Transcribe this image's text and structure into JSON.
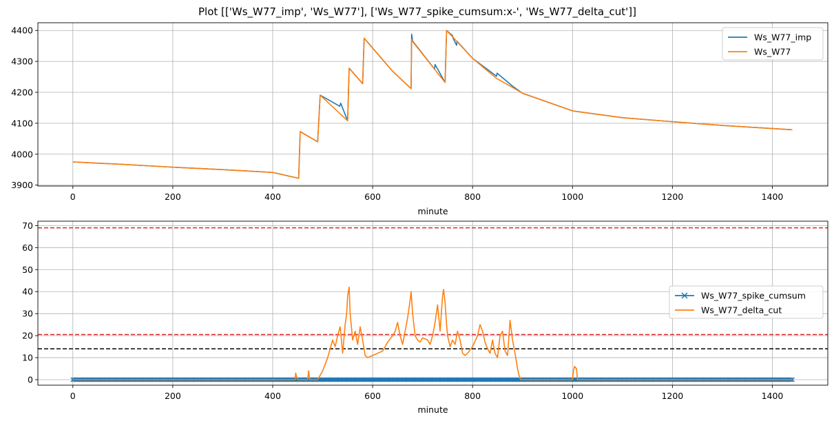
{
  "figure": {
    "title": "Plot [['Ws_W77_imp', 'Ws_W77'], ['Ws_W77_spike_cumsum:x-', 'Ws_W77_delta_cut']]"
  },
  "chart_data": [
    {
      "type": "line",
      "xlabel": "minute",
      "ylabel": "",
      "xlim": [
        -70,
        1511
      ],
      "ylim": [
        3897,
        4425
      ],
      "xticks": [
        0,
        200,
        400,
        600,
        800,
        1000,
        1200,
        1400
      ],
      "yticks": [
        3900,
        4000,
        4100,
        4200,
        4300,
        4400
      ],
      "grid": true,
      "legend": "upper right",
      "series": [
        {
          "name": "Ws_W77_imp",
          "color": "#1f77b4",
          "x": [
            0,
            100,
            200,
            300,
            400,
            452,
            455,
            490,
            495,
            534,
            536,
            550,
            553,
            580,
            583,
            640,
            677,
            678,
            680,
            724,
            725,
            745,
            748,
            760,
            761,
            768,
            769,
            800,
            848,
            849,
            880,
            900,
            1000,
            1100,
            1200,
            1300,
            1440
          ],
          "y": [
            3975,
            3967,
            3958,
            3950,
            3941,
            3922,
            4073,
            4040,
            4191,
            4155,
            4165,
            4108,
            4278,
            4228,
            4375,
            4268,
            4212,
            4388,
            4366,
            4275,
            4290,
            4232,
            4400,
            4383,
            4375,
            4352,
            4365,
            4310,
            4252,
            4262,
            4220,
            4197,
            4140,
            4118,
            4105,
            4093,
            4079
          ]
        },
        {
          "name": "Ws_W77",
          "color": "#ff7f0e",
          "x": [
            0,
            100,
            200,
            300,
            400,
            452,
            455,
            490,
            495,
            550,
            553,
            580,
            583,
            640,
            677,
            678,
            680,
            745,
            748,
            800,
            848,
            880,
            900,
            1000,
            1100,
            1200,
            1300,
            1440
          ],
          "y": [
            3975,
            3967,
            3958,
            3950,
            3941,
            3922,
            4073,
            4040,
            4191,
            4108,
            4278,
            4228,
            4375,
            4268,
            4212,
            4372,
            4364,
            4232,
            4400,
            4310,
            4245,
            4216,
            4197,
            4140,
            4118,
            4105,
            4093,
            4079
          ]
        }
      ]
    },
    {
      "type": "line",
      "xlabel": "minute",
      "ylabel": "",
      "xlim": [
        -70,
        1511
      ],
      "ylim": [
        -2.5,
        72
      ],
      "xticks": [
        0,
        200,
        400,
        600,
        800,
        1000,
        1200,
        1400
      ],
      "yticks": [
        0,
        10,
        20,
        30,
        40,
        50,
        60,
        70
      ],
      "grid": true,
      "legend": "center right",
      "hlines": [
        {
          "y": 69,
          "color": "#d62728"
        },
        {
          "y": 20.5,
          "color": "#d62728"
        },
        {
          "y": 14,
          "color": "#000000"
        }
      ],
      "series": [
        {
          "name": "Ws_W77_spike_cumsum",
          "color": "#1f77b4",
          "marker": "x",
          "x": [
            0,
            1440
          ],
          "y": [
            0,
            0
          ],
          "marker_step": 3
        },
        {
          "name": "Ws_W77_delta_cut",
          "color": "#ff7f0e",
          "x": [
            0,
            445,
            446,
            448,
            450,
            452,
            470,
            472,
            474,
            480,
            490,
            495,
            500,
            510,
            515,
            520,
            525,
            530,
            535,
            540,
            545,
            548,
            550,
            553,
            555,
            560,
            565,
            570,
            575,
            580,
            585,
            590,
            600,
            610,
            620,
            630,
            640,
            645,
            650,
            655,
            660,
            665,
            670,
            675,
            677,
            680,
            685,
            690,
            695,
            700,
            710,
            715,
            720,
            725,
            730,
            735,
            740,
            742,
            745,
            748,
            750,
            755,
            760,
            765,
            770,
            775,
            780,
            785,
            790,
            800,
            810,
            815,
            820,
            825,
            830,
            835,
            840,
            845,
            850,
            855,
            860,
            865,
            870,
            875,
            880,
            885,
            890,
            893,
            896,
            1000,
            1002,
            1004,
            1008,
            1010,
            1440
          ],
          "y": [
            0,
            0,
            3,
            1,
            0,
            0,
            0,
            4,
            0,
            0,
            0,
            2,
            4,
            10,
            14,
            18,
            15,
            20,
            24,
            12,
            25,
            30,
            38,
            42,
            30,
            18,
            22,
            16,
            24,
            18,
            11,
            10,
            11,
            12,
            13,
            17,
            20,
            22,
            26,
            20,
            16,
            22,
            28,
            36,
            40,
            30,
            20,
            18,
            17,
            19,
            18,
            16,
            20,
            26,
            34,
            22,
            38,
            41,
            35,
            25,
            20,
            15,
            18,
            16,
            22,
            18,
            12,
            11,
            12,
            15,
            20,
            25,
            22,
            17,
            14,
            12,
            18,
            12,
            10,
            20,
            22,
            13,
            11,
            27,
            18,
            12,
            5,
            2,
            0,
            0,
            4,
            6,
            5,
            0,
            0
          ]
        }
      ]
    }
  ]
}
